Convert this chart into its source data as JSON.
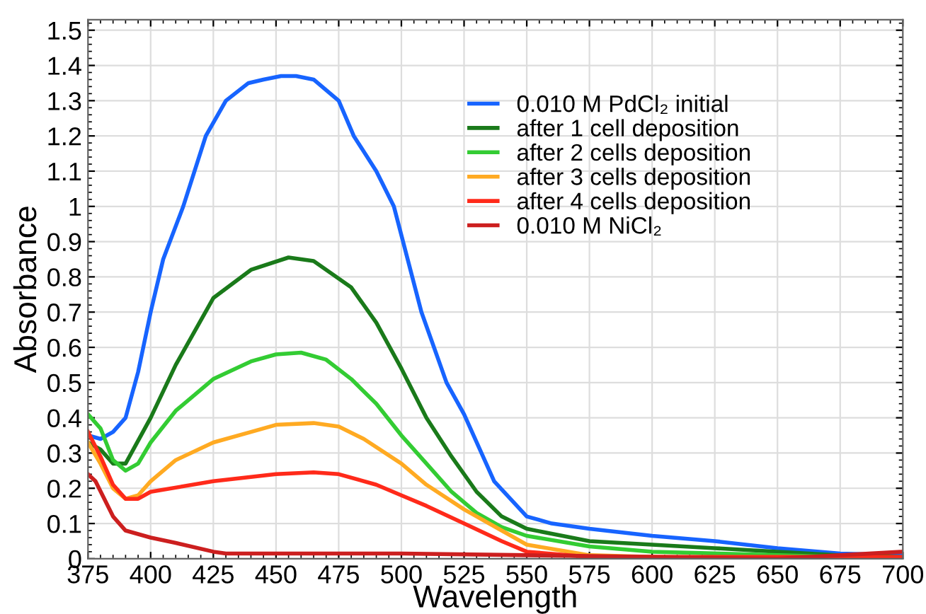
{
  "chart_data": {
    "type": "line",
    "xlabel": "Wavelength",
    "ylabel": "Absorbance",
    "xlim": [
      375,
      700
    ],
    "xticks": [
      375,
      400,
      425,
      450,
      475,
      500,
      525,
      550,
      575,
      600,
      625,
      650,
      675,
      700
    ],
    "ylim": [
      0,
      1.53
    ],
    "yticks": [
      0,
      0.1,
      0.2,
      0.3,
      0.4,
      0.5,
      0.6,
      0.7,
      0.8,
      0.9,
      1,
      1.1,
      1.2,
      1.3,
      1.4,
      1.5
    ],
    "grid": true,
    "legend": "top right",
    "marker": "none",
    "line_style": "solid",
    "series": [
      {
        "name": "0.010 M PdCl₂ initial",
        "color": "#1764ff",
        "x": [
          375,
          380,
          385,
          390,
          395,
          400,
          405,
          413,
          422,
          430,
          439,
          445,
          452,
          458,
          465,
          475,
          481,
          490,
          497,
          508,
          518,
          525,
          537,
          550,
          560,
          575,
          600,
          625,
          650,
          675,
          700
        ],
        "values": [
          0.35,
          0.34,
          0.36,
          0.4,
          0.53,
          0.7,
          0.85,
          1.0,
          1.2,
          1.3,
          1.35,
          1.36,
          1.37,
          1.37,
          1.36,
          1.3,
          1.2,
          1.1,
          1.0,
          0.7,
          0.5,
          0.41,
          0.22,
          0.12,
          0.1,
          0.085,
          0.065,
          0.05,
          0.03,
          0.015,
          0.01
        ]
      },
      {
        "name": "after 1 cell deposition",
        "color": "#1a7a1a",
        "x": [
          375,
          380,
          385,
          390,
          400,
          410,
          425,
          440,
          455,
          465,
          480,
          490,
          500,
          510,
          520,
          530,
          540,
          550,
          575,
          600,
          625,
          650,
          675,
          700
        ],
        "values": [
          0.33,
          0.31,
          0.27,
          0.27,
          0.4,
          0.55,
          0.74,
          0.82,
          0.855,
          0.845,
          0.77,
          0.67,
          0.54,
          0.4,
          0.29,
          0.19,
          0.12,
          0.085,
          0.05,
          0.04,
          0.03,
          0.02,
          0.01,
          0.005
        ]
      },
      {
        "name": "after 2 cells deposition",
        "color": "#33cc33",
        "x": [
          375,
          380,
          385,
          390,
          395,
          400,
          410,
          425,
          440,
          450,
          460,
          470,
          480,
          490,
          500,
          510,
          520,
          530,
          540,
          550,
          575,
          600,
          650,
          700
        ],
        "values": [
          0.41,
          0.37,
          0.28,
          0.25,
          0.27,
          0.33,
          0.42,
          0.51,
          0.56,
          0.58,
          0.585,
          0.565,
          0.51,
          0.44,
          0.35,
          0.27,
          0.19,
          0.13,
          0.09,
          0.065,
          0.035,
          0.02,
          0.01,
          0.0
        ]
      },
      {
        "name": "after 3 cells deposition",
        "color": "#ffaa22",
        "x": [
          375,
          380,
          385,
          390,
          395,
          400,
          410,
          425,
          440,
          450,
          465,
          475,
          485,
          500,
          510,
          525,
          540,
          550,
          575,
          600,
          700
        ],
        "values": [
          0.33,
          0.27,
          0.2,
          0.17,
          0.18,
          0.22,
          0.28,
          0.33,
          0.36,
          0.38,
          0.385,
          0.375,
          0.34,
          0.27,
          0.21,
          0.14,
          0.08,
          0.04,
          0.01,
          0.005,
          0.0
        ]
      },
      {
        "name": "after 4 cells deposition",
        "color": "#ff2a1a",
        "x": [
          375,
          380,
          385,
          390,
          395,
          400,
          425,
          450,
          465,
          475,
          490,
          500,
          510,
          525,
          540,
          550,
          575,
          700
        ],
        "values": [
          0.36,
          0.29,
          0.21,
          0.17,
          0.17,
          0.19,
          0.22,
          0.24,
          0.245,
          0.24,
          0.21,
          0.18,
          0.15,
          0.1,
          0.05,
          0.02,
          0.005,
          0.005
        ]
      },
      {
        "name": "0.010 M NiCl₂",
        "color": "#cc1f1f",
        "x": [
          375,
          378,
          385,
          390,
          400,
          410,
          425,
          430,
          500,
          550,
          600,
          650,
          700
        ],
        "values": [
          0.24,
          0.22,
          0.12,
          0.08,
          0.06,
          0.045,
          0.02,
          0.015,
          0.015,
          0.01,
          0.005,
          0.0,
          0.02
        ]
      }
    ]
  }
}
